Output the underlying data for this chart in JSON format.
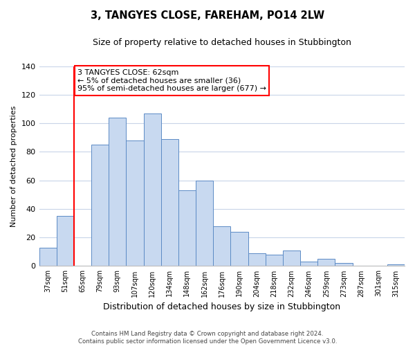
{
  "title": "3, TANGYES CLOSE, FAREHAM, PO14 2LW",
  "subtitle": "Size of property relative to detached houses in Stubbington",
  "xlabel": "Distribution of detached houses by size in Stubbington",
  "ylabel": "Number of detached properties",
  "bar_color": "#c8d9f0",
  "bar_edge_color": "#5b8ac5",
  "categories": [
    "37sqm",
    "51sqm",
    "65sqm",
    "79sqm",
    "93sqm",
    "107sqm",
    "120sqm",
    "134sqm",
    "148sqm",
    "162sqm",
    "176sqm",
    "190sqm",
    "204sqm",
    "218sqm",
    "232sqm",
    "246sqm",
    "259sqm",
    "273sqm",
    "287sqm",
    "301sqm",
    "315sqm"
  ],
  "values": [
    13,
    35,
    0,
    85,
    104,
    88,
    107,
    89,
    53,
    60,
    28,
    24,
    9,
    8,
    11,
    3,
    5,
    2,
    0,
    0,
    1
  ],
  "ylim": [
    0,
    140
  ],
  "yticks": [
    0,
    20,
    40,
    60,
    80,
    100,
    120,
    140
  ],
  "red_line_x": 1.5,
  "annotation_title": "3 TANGYES CLOSE: 62sqm",
  "annotation_line1": "← 5% of detached houses are smaller (36)",
  "annotation_line2": "95% of semi-detached houses are larger (677) →",
  "footer_line1": "Contains HM Land Registry data © Crown copyright and database right 2024.",
  "footer_line2": "Contains public sector information licensed under the Open Government Licence v3.0.",
  "background_color": "#ffffff",
  "grid_color": "#c8d4e8"
}
